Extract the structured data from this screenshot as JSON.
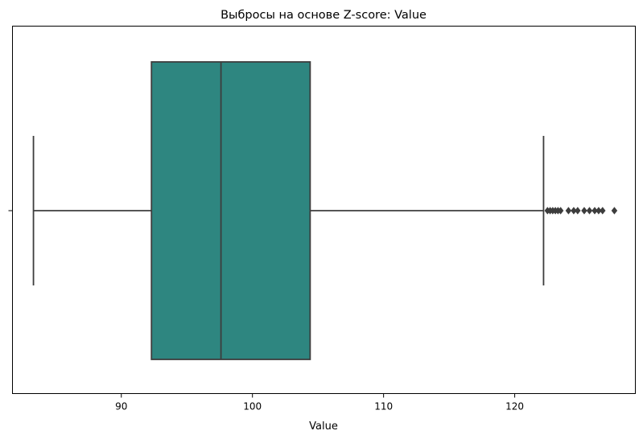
{
  "chart_data": {
    "type": "box",
    "orientation": "horizontal",
    "title": "Выбросы на основе Z-score: Value",
    "xlabel": "Value",
    "ylabel": "",
    "xlim": [
      81.7,
      129.2
    ],
    "xticks": [
      90,
      100,
      110,
      120
    ],
    "grid": false,
    "legend": "none",
    "box": {
      "whisker_low": 83.3,
      "q1": 92.3,
      "median": 97.6,
      "q3": 104.4,
      "whisker_high": 122.2,
      "outliers": [
        122.5,
        122.7,
        122.9,
        123.1,
        123.3,
        123.5,
        124.1,
        124.5,
        124.8,
        125.3,
        125.7,
        126.1,
        126.4,
        126.7,
        127.6
      ]
    },
    "colors": {
      "box_fill": "#2e8680",
      "line": "#3d3d3d",
      "axes": "#000000",
      "background": "#ffffff"
    }
  }
}
